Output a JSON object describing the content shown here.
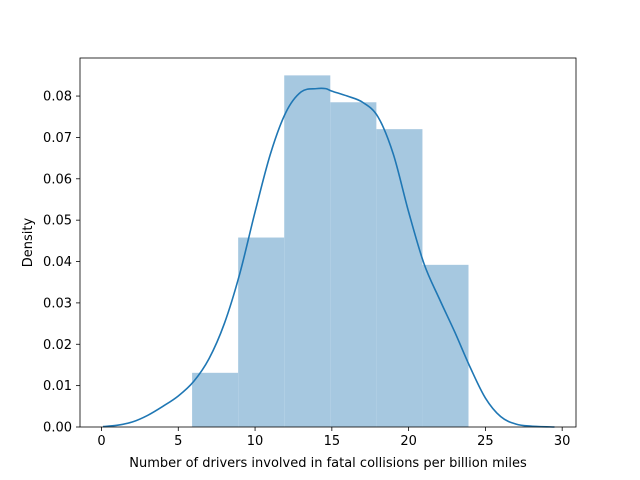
{
  "chart_data": {
    "type": "bar",
    "title": "",
    "xlabel": "Number of drivers involved in fatal collisions per billion miles",
    "ylabel": "Density",
    "xlim": [
      -1.4,
      30.9
    ],
    "ylim": [
      0,
      0.0892
    ],
    "x_ticks": [
      0,
      5,
      10,
      15,
      20,
      25,
      30
    ],
    "y_ticks": [
      0.0,
      0.01,
      0.02,
      0.03,
      0.04,
      0.05,
      0.06,
      0.07,
      0.08
    ],
    "x_tick_labels": [
      "0",
      "5",
      "10",
      "15",
      "20",
      "25",
      "30"
    ],
    "y_tick_labels": [
      "0.00",
      "0.01",
      "0.02",
      "0.03",
      "0.04",
      "0.05",
      "0.06",
      "0.07",
      "0.08"
    ],
    "grid": false,
    "histogram": {
      "bin_edges": [
        5.9,
        8.9,
        11.9,
        14.9,
        17.9,
        20.9,
        23.9
      ],
      "values": [
        0.0131,
        0.0458,
        0.085,
        0.0785,
        0.072,
        0.0392
      ],
      "color": "#a6c8e0"
    },
    "kde": {
      "color": "#1f77b4",
      "x": [
        0.1,
        1.0,
        2.0,
        3.0,
        4.0,
        5.0,
        6.0,
        7.0,
        8.0,
        9.0,
        10.0,
        11.0,
        12.0,
        13.0,
        14.0,
        14.6,
        15.0,
        16.0,
        17.0,
        18.0,
        19.0,
        20.0,
        21.0,
        22.0,
        23.0,
        24.0,
        25.0,
        26.0,
        27.0,
        28.0,
        29.5
      ],
      "y": [
        0.0001,
        0.0004,
        0.0012,
        0.0028,
        0.005,
        0.0075,
        0.011,
        0.0165,
        0.025,
        0.037,
        0.052,
        0.066,
        0.076,
        0.081,
        0.0818,
        0.0818,
        0.0812,
        0.08,
        0.0785,
        0.075,
        0.066,
        0.052,
        0.0395,
        0.031,
        0.023,
        0.0145,
        0.007,
        0.0025,
        0.0007,
        0.0002,
        0.0
      ]
    }
  }
}
